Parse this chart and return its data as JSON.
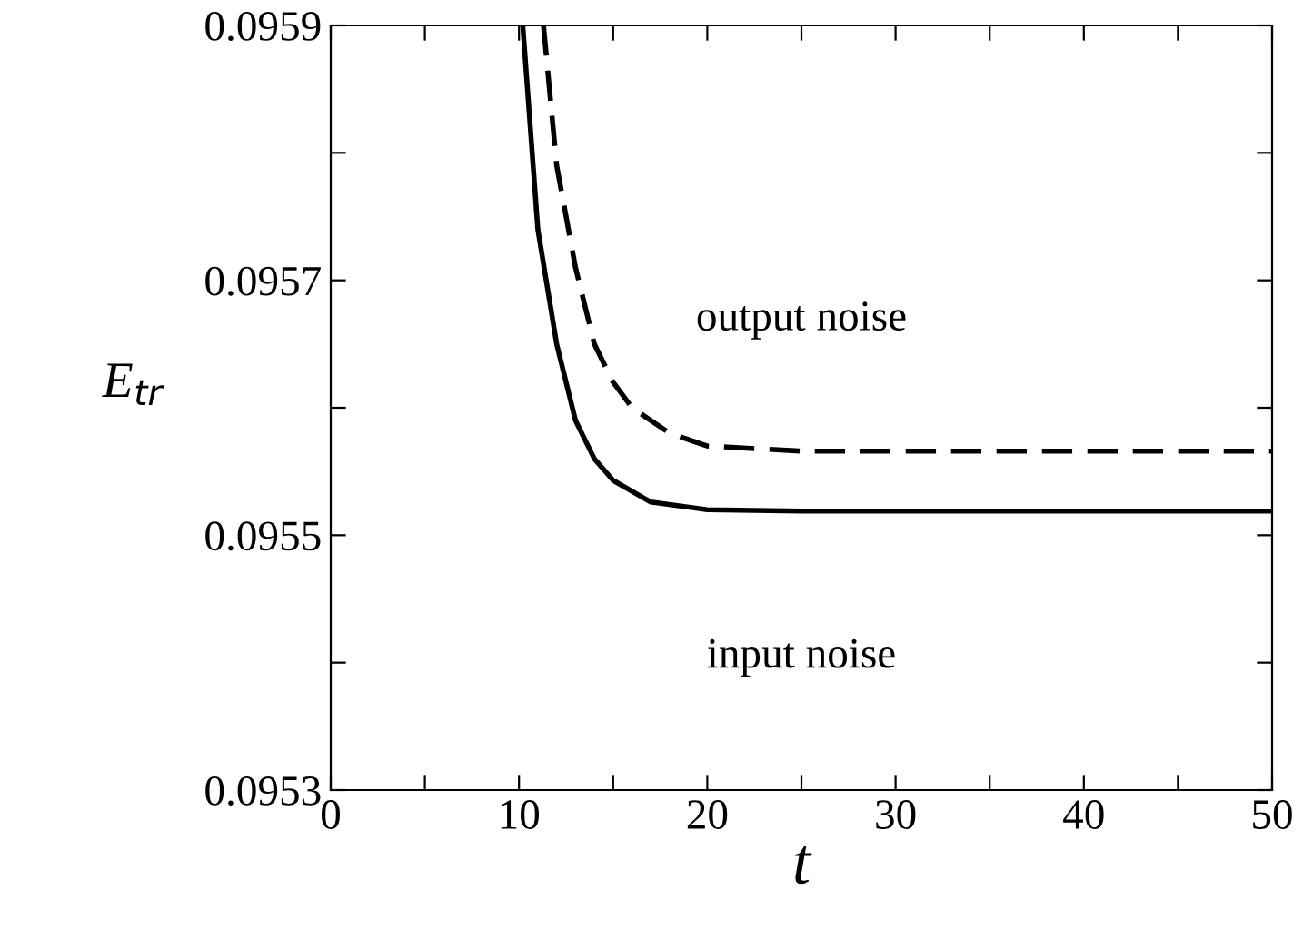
{
  "chart_data": {
    "type": "line",
    "xlabel": "t",
    "ylabel": "E$_{tr}$",
    "xlim": [
      0,
      50
    ],
    "ylim": [
      0.0953,
      0.0959
    ],
    "xticks": [
      0,
      {
        "value": 5,
        "label": null
      },
      10,
      {
        "value": 15,
        "label": null
      },
      20,
      {
        "value": 25,
        "label": null
      },
      30,
      {
        "value": 35,
        "label": null
      },
      40,
      {
        "value": 45,
        "label": null
      },
      50
    ],
    "yticks": [
      0.0953,
      {
        "value": 0.0954,
        "label": null
      },
      0.0955,
      {
        "value": 0.0956,
        "label": null
      },
      0.0957,
      {
        "value": 0.0958,
        "label": null
      },
      0.0959
    ],
    "grid": false,
    "marker": "none",
    "series": [
      {
        "name": "input noise",
        "color": "#000000",
        "line_style": "solid",
        "x": [
          10.2,
          11,
          12,
          13,
          14,
          15,
          17,
          20,
          25,
          50
        ],
        "values": [
          0.0959,
          0.09574,
          0.09565,
          0.09559,
          0.09556,
          0.095543,
          0.095526,
          0.09552,
          0.095519,
          0.095519
        ]
      },
      {
        "name": "output noise",
        "color": "#000000",
        "line_style": "dashed",
        "x": [
          11.3,
          12,
          13,
          14,
          15,
          16,
          18,
          20,
          25,
          50
        ],
        "values": [
          0.0959,
          0.09579,
          0.09571,
          0.09565,
          0.09562,
          0.0956,
          0.09558,
          0.09557,
          0.095566,
          0.095566
        ]
      }
    ]
  }
}
